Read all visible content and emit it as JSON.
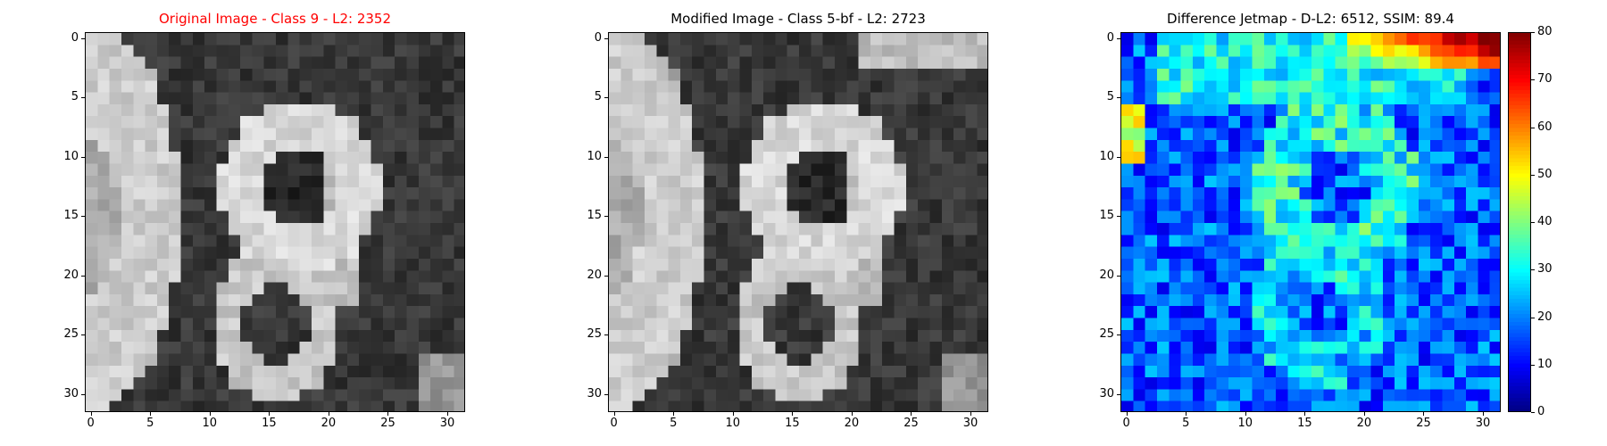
{
  "panels": [
    {
      "title": "Original Image - Class 9 - L2: 2352",
      "title_color": "#ff0000",
      "kind": "grayscale"
    },
    {
      "title": "Modified Image - Class 5-bf - L2: 2723",
      "title_color": "#000000",
      "kind": "grayscale"
    },
    {
      "title": "Difference Jetmap - D-L2: 6512, SSIM: 89.4",
      "title_color": "#000000",
      "kind": "jet"
    }
  ],
  "axis_ticks": [
    "0",
    "5",
    "10",
    "15",
    "20",
    "25",
    "30"
  ],
  "colorbar_ticks": [
    "0",
    "10",
    "20",
    "30",
    "40",
    "50",
    "60",
    "70",
    "80"
  ],
  "chart_data": [
    {
      "type": "heatmap",
      "title": "Original Image - Class 9 - L2: 2352",
      "grid": [
        32,
        32
      ],
      "xlim": [
        -0.5,
        31.5
      ],
      "ylim": [
        31.5,
        -0.5
      ],
      "xticks": [
        0,
        5,
        10,
        15,
        20,
        25,
        30
      ],
      "yticks": [
        0,
        5,
        10,
        15,
        20,
        25,
        30
      ],
      "colormap": "gray"
    },
    {
      "type": "heatmap",
      "title": "Modified Image - Class 5-bf - L2: 2723",
      "grid": [
        32,
        32
      ],
      "xlim": [
        -0.5,
        31.5
      ],
      "ylim": [
        31.5,
        -0.5
      ],
      "xticks": [
        0,
        5,
        10,
        15,
        20,
        25,
        30
      ],
      "yticks": [
        0,
        5,
        10,
        15,
        20,
        25,
        30
      ],
      "colormap": "gray"
    },
    {
      "type": "heatmap",
      "title": "Difference Jetmap - D-L2: 6512, SSIM: 89.4",
      "grid": [
        32,
        32
      ],
      "xlim": [
        -0.5,
        31.5
      ],
      "ylim": [
        31.5,
        -0.5
      ],
      "xticks": [
        0,
        5,
        10,
        15,
        20,
        25,
        30
      ],
      "yticks": [
        0,
        5,
        10,
        15,
        20,
        25,
        30
      ],
      "colormap": "jet",
      "colorbar": {
        "range": [
          0,
          80
        ],
        "ticks": [
          0,
          10,
          20,
          30,
          40,
          50,
          60,
          70,
          80
        ]
      }
    }
  ]
}
